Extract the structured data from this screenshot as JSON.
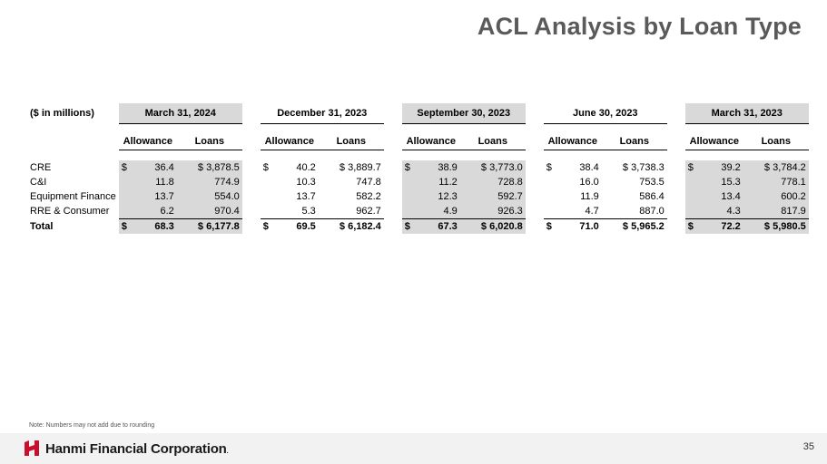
{
  "title": "ACL Analysis by Loan Type",
  "units_label": "($ in millions)",
  "periods": [
    "March 31, 2024",
    "December 31, 2023",
    "September 30, 2023",
    "June 30, 2023",
    "March 31, 2023"
  ],
  "sub_headers": {
    "allowance": "Allowance",
    "loans": "Loans"
  },
  "rows": [
    {
      "label": "CRE",
      "allowance": [
        "$",
        "$",
        "$",
        "$",
        "$"
      ],
      "values": [
        [
          "36.4",
          "$ 3,878.5"
        ],
        [
          "40.2",
          "$ 3,889.7"
        ],
        [
          "38.9",
          "$ 3,773.0"
        ],
        [
          "38.4",
          "$ 3,738.3"
        ],
        [
          "39.2",
          "$ 3,784.2"
        ]
      ]
    },
    {
      "label": "C&I",
      "values": [
        [
          "11.8",
          "774.9"
        ],
        [
          "10.3",
          "747.8"
        ],
        [
          "11.2",
          "728.8"
        ],
        [
          "16.0",
          "753.5"
        ],
        [
          "15.3",
          "778.1"
        ]
      ]
    },
    {
      "label": "Equipment Finance",
      "values": [
        [
          "13.7",
          "554.0"
        ],
        [
          "13.7",
          "582.2"
        ],
        [
          "12.3",
          "592.7"
        ],
        [
          "11.9",
          "586.4"
        ],
        [
          "13.4",
          "600.2"
        ]
      ]
    },
    {
      "label": "RRE & Consumer",
      "values": [
        [
          "6.2",
          "970.4"
        ],
        [
          "5.3",
          "962.7"
        ],
        [
          "4.9",
          "926.3"
        ],
        [
          "4.7",
          "887.0"
        ],
        [
          "4.3",
          "817.9"
        ]
      ]
    },
    {
      "label": "Total",
      "allowance": [
        "$",
        "$",
        "$",
        "$",
        "$"
      ],
      "values": [
        [
          "68.3",
          "$ 6,177.8"
        ],
        [
          "69.5",
          "$ 6,182.4"
        ],
        [
          "67.3",
          "$ 6,020.8"
        ],
        [
          "71.0",
          "$ 5,965.2"
        ],
        [
          "72.2",
          "$ 5,980.5"
        ]
      ]
    }
  ],
  "note": "Note: Numbers may not add due to rounding",
  "footer": {
    "company": "Hanmi Financial Corporation",
    "trademark": ".",
    "page_number": "35"
  },
  "colors": {
    "title": "#5a5a5a",
    "header_shade": "#d9d9d9",
    "logo_red": "#c8102e"
  }
}
